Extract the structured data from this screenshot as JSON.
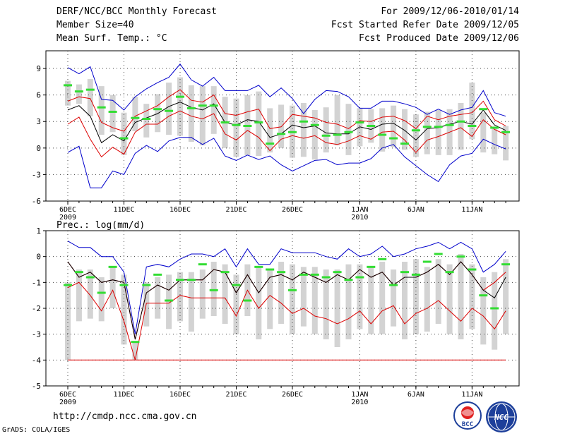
{
  "header": {
    "title": "DERF/NCC/BCC Monthly Forecast",
    "member_size": "Member Size=40",
    "variable": "Mean Surf. Temp.: °C",
    "period": "For 2009/12/06-2010/01/14",
    "started": "Fcst Started Refer Date 2009/12/05",
    "produced": "Fcst Produced Date 2009/12/06"
  },
  "footer": {
    "url": "http://cmdp.ncc.cma.gov.cn",
    "credit": "GrADS: COLA/IGES",
    "logo_bcc": "BCC",
    "logo_ncc": "NCC"
  },
  "colors": {
    "box": "#d3d3d3",
    "max": "#0000cc",
    "upper": "#dd0000",
    "mean": "#000000",
    "median": "#33dd33"
  },
  "chart_data": [
    {
      "type": "box-ensemble",
      "title": "Mean Surf. Temp.: °C",
      "x_tick_labels": [
        "6DEC",
        "11DEC",
        "16DEC",
        "21DEC",
        "26DEC",
        "1JAN",
        "6JAN",
        "11JAN"
      ],
      "x_tick_days": [
        0,
        5,
        10,
        15,
        20,
        26,
        31,
        36
      ],
      "x_year_labels": [
        {
          "day": 0,
          "label": "2009"
        },
        {
          "day": 26,
          "label": "2010"
        }
      ],
      "ylim": [
        -6,
        11
      ],
      "yticks": [
        -6,
        -3,
        0,
        3,
        6,
        9
      ],
      "days": 40,
      "max": [
        9.1,
        8.4,
        9.2,
        5.5,
        5.4,
        4.3,
        5.8,
        6.7,
        7.4,
        8.0,
        9.5,
        7.7,
        7.0,
        8.0,
        6.5,
        6.5,
        6.5,
        7.1,
        5.8,
        6.8,
        5.6,
        3.9,
        5.5,
        6.5,
        6.4,
        5.8,
        4.5,
        4.5,
        5.3,
        5.3,
        5.0,
        4.6,
        3.8,
        4.4,
        3.8,
        4.3,
        4.6,
        6.5,
        4.0,
        3.6
      ],
      "min": [
        -0.5,
        0.2,
        -4.5,
        -4.5,
        -2.6,
        -3.0,
        -0.6,
        0.3,
        -0.4,
        0.8,
        1.2,
        1.2,
        0.4,
        1.1,
        -0.9,
        -1.4,
        -0.8,
        -1.3,
        -0.9,
        -1.9,
        -2.6,
        -2.0,
        -1.4,
        -1.3,
        -1.9,
        -1.7,
        -1.7,
        -1.2,
        0.0,
        0.4,
        -1.0,
        -2.0,
        -3.0,
        -3.8,
        -1.9,
        -0.9,
        -0.6,
        1.0,
        0.4,
        -0.1
      ],
      "upper": [
        5.3,
        5.8,
        5.6,
        2.9,
        2.3,
        1.9,
        3.6,
        4.2,
        4.8,
        5.8,
        6.6,
        5.4,
        5.2,
        6.0,
        3.9,
        3.7,
        4.1,
        4.4,
        2.2,
        2.4,
        3.8,
        3.6,
        3.4,
        2.9,
        2.7,
        2.2,
        3.1,
        3.0,
        3.5,
        3.6,
        3.1,
        2.2,
        3.6,
        3.2,
        3.6,
        3.8,
        4.0,
        5.3,
        3.2,
        2.5
      ],
      "lower": [
        2.7,
        3.5,
        1.0,
        -1.0,
        0.1,
        -0.7,
        1.8,
        2.7,
        2.7,
        3.6,
        4.2,
        3.6,
        3.3,
        3.9,
        1.6,
        0.9,
        2.0,
        1.2,
        -0.3,
        1.0,
        1.4,
        1.1,
        1.4,
        0.6,
        0.4,
        0.8,
        1.4,
        1.0,
        1.8,
        1.9,
        0.9,
        -0.5,
        0.9,
        1.3,
        1.8,
        2.3,
        1.3,
        3.2,
        2.1,
        1.5
      ],
      "mean": [
        4.3,
        4.8,
        3.6,
        0.6,
        1.5,
        0.8,
        2.9,
        3.4,
        3.9,
        4.7,
        5.2,
        4.6,
        4.3,
        5.0,
        2.9,
        2.6,
        3.2,
        3.0,
        1.2,
        1.6,
        2.6,
        2.3,
        2.5,
        1.7,
        1.6,
        1.6,
        2.4,
        2.1,
        2.7,
        2.8,
        2.0,
        0.9,
        2.2,
        2.3,
        2.7,
        3.0,
        2.7,
        4.3,
        2.6,
        2.0
      ],
      "median": [
        7.1,
        6.4,
        6.6,
        4.6,
        4.1,
        1.1,
        3.4,
        3.3,
        4.4,
        4.2,
        5.8,
        4.5,
        4.8,
        4.8,
        2.9,
        2.6,
        2.5,
        2.9,
        0.5,
        1.6,
        1.8,
        3.0,
        2.6,
        1.4,
        1.5,
        1.8,
        2.9,
        2.5,
        1.5,
        1.1,
        0.5,
        2.0,
        2.4,
        2.4,
        2.6,
        3.0,
        2.5,
        4.4,
        2.3,
        1.8
      ],
      "box_top": [
        7.6,
        7.2,
        7.8,
        7.0,
        6.0,
        4.0,
        5.8,
        5.0,
        6.1,
        7.4,
        8.0,
        7.1,
        7.0,
        7.0,
        5.8,
        5.6,
        6.0,
        6.4,
        4.5,
        4.9,
        4.8,
        5.1,
        4.3,
        4.6,
        6.0,
        5.0,
        4.5,
        4.4,
        4.5,
        4.8,
        4.4,
        3.8,
        4.1,
        4.3,
        4.4,
        5.1,
        7.4,
        4.0,
        2.2,
        2.5
      ],
      "box_bot": [
        4.8,
        5.0,
        3.6,
        1.5,
        1.8,
        -0.8,
        1.9,
        1.2,
        1.8,
        1.5,
        1.4,
        0.7,
        0.3,
        1.6,
        0.0,
        -1.0,
        -0.8,
        -0.9,
        -0.5,
        0.0,
        -1.1,
        -1.0,
        -1.3,
        -0.5,
        0.3,
        -0.8,
        0.2,
        0.6,
        -0.4,
        0.1,
        -0.2,
        -1.0,
        -0.7,
        -0.8,
        -0.8,
        -0.2,
        1.0,
        -0.5,
        -0.7,
        -1.4
      ]
    },
    {
      "type": "box-ensemble",
      "title": "Prec.: log(mm/d)",
      "x_tick_labels": [
        "6DEC",
        "11DEC",
        "16DEC",
        "21DEC",
        "26DEC",
        "1JAN",
        "6JAN",
        "11JAN"
      ],
      "x_tick_days": [
        0,
        5,
        10,
        15,
        20,
        26,
        31,
        36
      ],
      "x_year_labels": [
        {
          "day": 0,
          "label": "2009"
        },
        {
          "day": 26,
          "label": "2010"
        }
      ],
      "ylim": [
        -5,
        1
      ],
      "yticks": [
        -5,
        -4,
        -3,
        -2,
        -1,
        0,
        1
      ],
      "days": 40,
      "max": [
        0.6,
        0.35,
        0.35,
        0.0,
        0.0,
        -0.6,
        -3.0,
        -0.4,
        -0.3,
        -0.4,
        -0.1,
        0.1,
        0.1,
        0.0,
        0.3,
        -0.4,
        0.3,
        -0.3,
        -0.3,
        0.3,
        0.15,
        0.15,
        0.15,
        0.0,
        -0.1,
        0.3,
        0.0,
        0.1,
        0.4,
        0.0,
        0.1,
        0.3,
        0.4,
        0.55,
        0.3,
        0.55,
        0.3,
        -0.6,
        -0.3,
        0.2
      ],
      "upper": [
        -0.2,
        -0.8,
        -0.6,
        -1.0,
        -0.9,
        -1.0,
        -3.2,
        -1.4,
        -1.1,
        -1.3,
        -0.9,
        -0.9,
        -0.9,
        -0.5,
        -0.6,
        -1.4,
        -0.7,
        -1.4,
        -0.8,
        -0.7,
        -0.9,
        -0.6,
        -0.8,
        -1.0,
        -0.7,
        -0.9,
        -0.5,
        -0.8,
        -0.6,
        -1.1,
        -0.8,
        -0.8,
        -0.6,
        -0.3,
        -0.7,
        -0.2,
        -0.7,
        -1.3,
        -1.0,
        -0.6
      ],
      "mean": [
        -0.2,
        -0.8,
        -0.6,
        -1.0,
        -0.9,
        -1.0,
        -3.2,
        -1.4,
        -1.1,
        -1.3,
        -0.9,
        -0.9,
        -0.9,
        -0.5,
        -0.6,
        -1.4,
        -0.7,
        -1.4,
        -0.8,
        -0.7,
        -0.9,
        -0.6,
        -0.8,
        -1.0,
        -0.7,
        -0.9,
        -0.5,
        -0.8,
        -0.6,
        -1.1,
        -0.8,
        -0.8,
        -0.6,
        -0.3,
        -0.7,
        -0.2,
        -0.7,
        -1.3,
        -1.6,
        -0.8
      ],
      "lower": [
        -1.2,
        -1.0,
        -1.5,
        -2.1,
        -1.3,
        -2.5,
        -4.0,
        -1.8,
        -1.8,
        -1.8,
        -1.5,
        -1.6,
        -1.6,
        -1.6,
        -1.6,
        -2.3,
        -1.3,
        -2.0,
        -1.5,
        -1.8,
        -2.2,
        -2.0,
        -2.3,
        -2.4,
        -2.6,
        -2.4,
        -2.1,
        -2.6,
        -2.1,
        -1.9,
        -2.6,
        -2.2,
        -2.0,
        -1.7,
        -2.1,
        -2.5,
        -2.0,
        -2.3,
        -2.8,
        -2.1
      ],
      "min": [
        -4.0,
        -4.0,
        -4.0,
        -4.0,
        -4.0,
        -4.0,
        -4.0,
        -4.0,
        -4.0,
        -4.0,
        -4.0,
        -4.0,
        -4.0,
        -4.0,
        -4.0,
        -4.0,
        -4.0,
        -4.0,
        -4.0,
        -4.0,
        -4.0,
        -4.0,
        -4.0,
        -4.0,
        -4.0,
        -4.0,
        -4.0,
        -4.0,
        -4.0,
        -4.0,
        -4.0,
        -4.0,
        -4.0,
        -4.0,
        -4.0,
        -4.0,
        -4.0,
        -4.0,
        -4.0,
        -4.0
      ],
      "median": [
        -1.1,
        -0.6,
        -0.8,
        -1.4,
        -0.4,
        -1.1,
        -3.3,
        -1.1,
        -0.7,
        -1.7,
        -0.9,
        -0.9,
        -0.3,
        -1.3,
        -0.6,
        -1.1,
        -1.7,
        -0.4,
        -0.5,
        -0.6,
        -1.3,
        -0.7,
        -0.7,
        -0.8,
        -0.6,
        -0.9,
        -0.8,
        -0.4,
        -0.1,
        -1.1,
        -0.6,
        -0.7,
        -0.2,
        0.1,
        -0.6,
        0.0,
        -0.5,
        -1.5,
        -2.0,
        -0.3
      ],
      "box_top": [
        -1.0,
        -0.5,
        -0.5,
        -0.8,
        -0.4,
        -0.7,
        -3.3,
        -1.0,
        -0.8,
        -0.7,
        -0.6,
        -0.6,
        -0.5,
        -0.2,
        -0.3,
        -0.7,
        -0.3,
        -0.4,
        -0.5,
        -0.2,
        -0.3,
        -0.4,
        -0.4,
        -0.5,
        -0.5,
        -0.3,
        -0.3,
        -0.4,
        -0.2,
        -0.5,
        -0.2,
        -0.1,
        -0.4,
        -0.1,
        -0.3,
        0.1,
        -0.3,
        -0.8,
        -0.6,
        -0.1
      ],
      "box_bot": [
        -4.0,
        -2.5,
        -2.4,
        -2.5,
        -2.0,
        -3.4,
        -4.0,
        -2.7,
        -2.4,
        -2.8,
        -2.5,
        -2.9,
        -2.4,
        -2.3,
        -2.6,
        -3.0,
        -2.3,
        -3.2,
        -2.8,
        -2.6,
        -3.0,
        -2.7,
        -3.0,
        -3.2,
        -3.5,
        -3.2,
        -2.8,
        -3.0,
        -3.0,
        -2.7,
        -3.2,
        -3.0,
        -2.9,
        -2.6,
        -3.0,
        -3.2,
        -2.8,
        -3.4,
        -3.6,
        -3.0
      ]
    }
  ]
}
